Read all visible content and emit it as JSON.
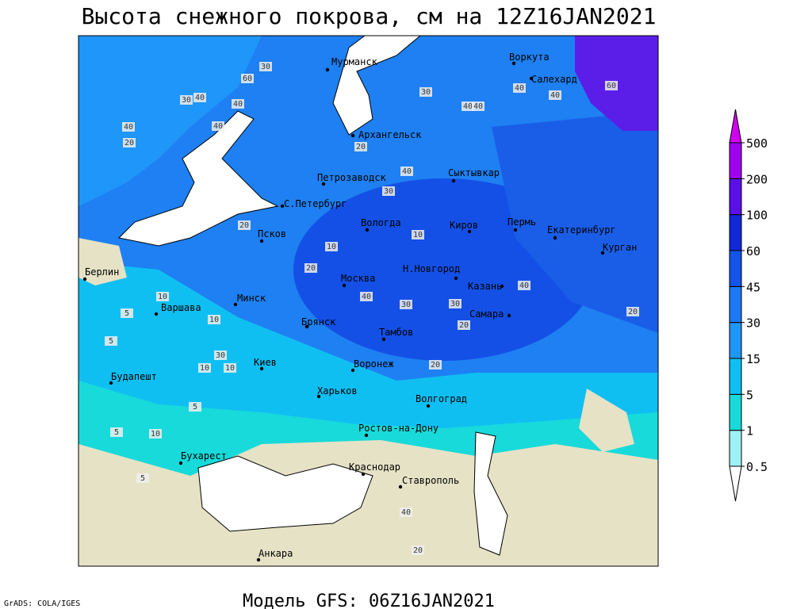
{
  "header": {
    "title": "Высота снежного покрова, см на 12Z16JAN2021"
  },
  "cities": [
    "Мурманск",
    "Воркута",
    "Салехард",
    "Архангельск",
    "Петрозаводск",
    "Сыктывкар",
    "С.Петербург",
    "Вологда",
    "Киров",
    "Пермь",
    "Екатеринбург",
    "Курган",
    "Псков",
    "Берлин",
    "Москва",
    "Н.Новгород",
    "Казань",
    "Минск",
    "Варшава",
    "Самара",
    "Брянск",
    "Тамбов",
    "Киев",
    "Воронеж",
    "Будапешт",
    "Харьков",
    "Волгоград",
    "Ростов-на-Дону",
    "Бухарест",
    "Краснодар",
    "Ставрополь",
    "Анкара"
  ],
  "contour_labels": [
    "60",
    "30",
    "40",
    "40",
    "30",
    "40",
    "20",
    "40",
    "40",
    "60",
    "30",
    "40",
    "40",
    "40",
    "20",
    "40",
    "30",
    "20",
    "10",
    "10",
    "20",
    "30",
    "40",
    "40",
    "10",
    "5",
    "10",
    "30",
    "20",
    "20",
    "30",
    "10",
    "10",
    "5",
    "5",
    "10",
    "5",
    "5",
    "20",
    "40",
    "20"
  ],
  "legend": {
    "levels": [
      0.5,
      1,
      5,
      15,
      30,
      45,
      60,
      100,
      200,
      500
    ],
    "colors": [
      "#9ef2f6",
      "#18dada",
      "#10bff2",
      "#1e96fa",
      "#1e78f5",
      "#1454ea",
      "#1028d8",
      "#5a10e6",
      "#a000f0",
      "#d200f0"
    ]
  },
  "footer": {
    "model": "Модель GFS: 06Z16JAN2021",
    "credit": "GrADS: COLA/IGES"
  }
}
